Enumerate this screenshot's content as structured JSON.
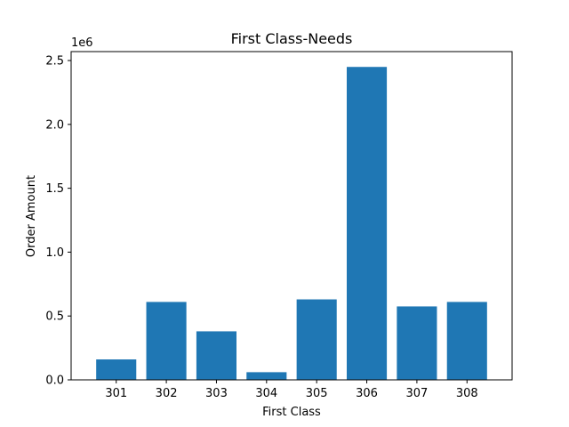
{
  "chart_data": {
    "type": "bar",
    "title": "First Class-Needs",
    "xlabel": "First Class",
    "ylabel": "Order Amount",
    "y_multiplier_label": "1e6",
    "categories": [
      "301",
      "302",
      "303",
      "304",
      "305",
      "306",
      "307",
      "308"
    ],
    "values": [
      160000,
      610000,
      380000,
      60000,
      630000,
      2450000,
      575000,
      610000
    ],
    "ylim": [
      0,
      2570000
    ],
    "yticks": [
      0,
      500000,
      1000000,
      1500000,
      2000000,
      2500000
    ],
    "ytick_labels": [
      "0.0",
      "0.5",
      "1.0",
      "1.5",
      "2.0",
      "2.5"
    ],
    "bar_color": "#1f77b4",
    "grid": false,
    "legend": "none"
  }
}
